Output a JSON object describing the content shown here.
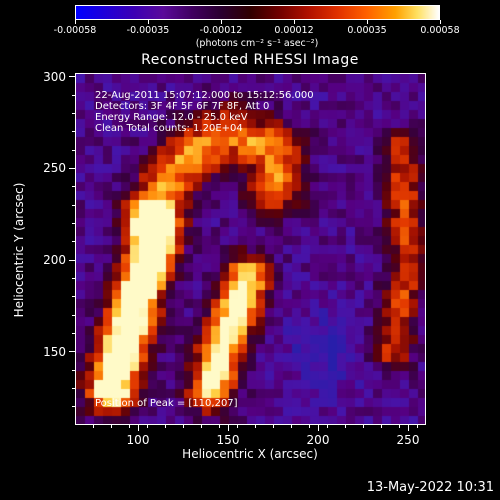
{
  "colorbar": {
    "labels": [
      "-0.00058",
      "-0.00035",
      "-0.00012",
      "0.00012",
      "0.00035",
      "0.00058"
    ],
    "units": "(photons cm⁻² s⁻¹ asec⁻²)",
    "range": [
      -0.00058,
      0.00058
    ]
  },
  "title": "Reconstructed RHESSI Image",
  "info": {
    "time": "22-Aug-2011 15:07:12.000 to 15:12:56.000",
    "detectors": "Detectors: 3F 4F 5F 6F 7F 8F, Att 0",
    "energy": "Energy Range: 12.0 - 25.0 keV",
    "clean": "Clean    Total counts: 1.20E+04",
    "peak": "Position of Peak = [110,207]"
  },
  "chart_data": {
    "type": "heatmap",
    "title": "Reconstructed RHESSI Image",
    "xlabel": "Heliocentric X (arcsec)",
    "ylabel": "Heliocentric Y (arcsec)",
    "xlim": [
      65,
      260
    ],
    "ylim": [
      110,
      302
    ],
    "xticks": [
      "100",
      "150",
      "200",
      "250"
    ],
    "yticks": [
      "150",
      "200",
      "250",
      "300"
    ],
    "peak": [
      110,
      207
    ],
    "features": [
      {
        "desc": "left bright loop leg",
        "points": [
          [
            108,
            215
          ],
          [
            105,
            200
          ],
          [
            100,
            185
          ],
          [
            90,
            150
          ],
          [
            85,
            130
          ]
        ]
      },
      {
        "desc": "right bright loop leg",
        "points": [
          [
            160,
            190
          ],
          [
            155,
            175
          ],
          [
            145,
            150
          ],
          [
            140,
            130
          ]
        ]
      },
      {
        "desc": "upper arch",
        "points": [
          [
            108,
            230
          ],
          [
            125,
            255
          ],
          [
            150,
            270
          ],
          [
            175,
            260
          ],
          [
            175,
            240
          ]
        ]
      },
      {
        "desc": "right edge warm column",
        "points": [
          [
            245,
            260
          ],
          [
            250,
            200
          ],
          [
            240,
            150
          ]
        ]
      }
    ]
  },
  "footer": {
    "timestamp": "13-May-2022 10:31"
  }
}
